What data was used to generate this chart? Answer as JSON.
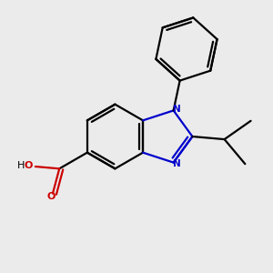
{
  "bg_color": "#ebebeb",
  "bond_color": "#000000",
  "nitrogen_color": "#0000cc",
  "oxygen_color": "#cc0000",
  "line_width": 1.6,
  "figsize": [
    3.0,
    3.0
  ],
  "dpi": 100,
  "xlim": [
    0,
    10
  ],
  "ylim": [
    0,
    10
  ],
  "bl": 1.2
}
